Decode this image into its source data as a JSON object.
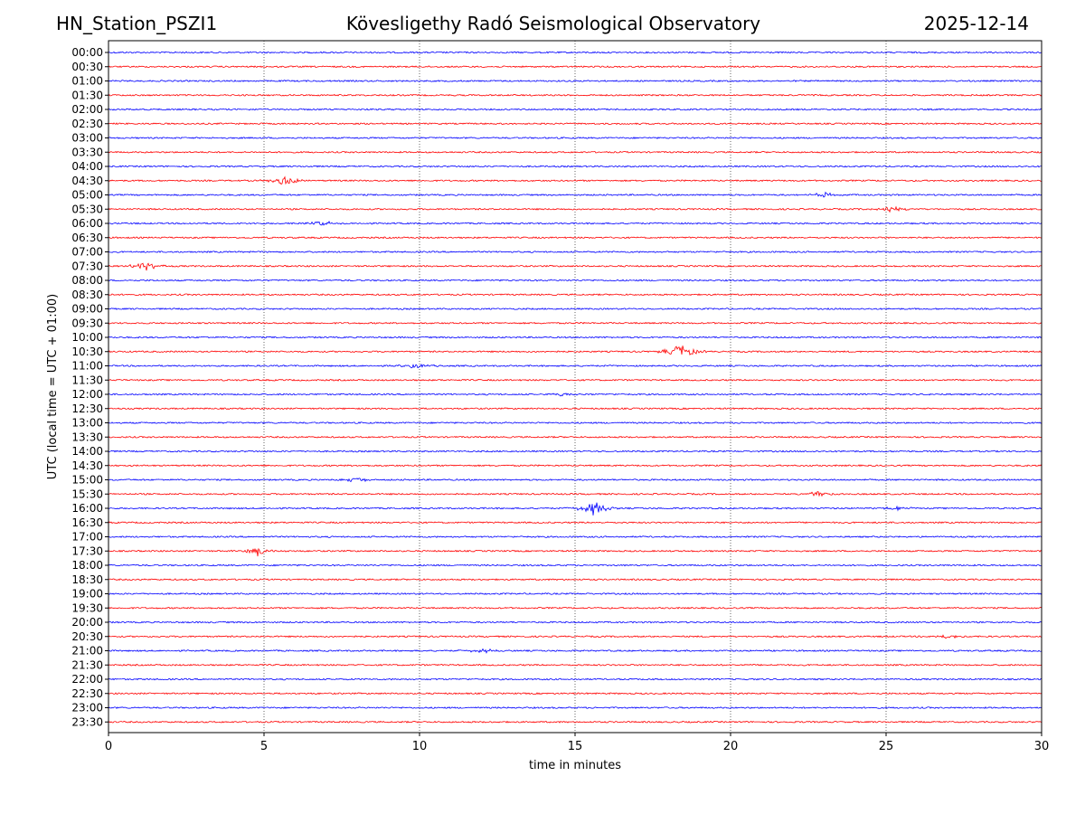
{
  "header": {
    "station": "HN_Station_PSZI1",
    "observatory": "Kövesligethy Radó Seismological Observatory",
    "date": "2025-12-14"
  },
  "chart_data": {
    "type": "line",
    "title": "Kövesligethy Radó Seismological Observatory",
    "xlabel": "time in minutes",
    "ylabel": "UTC (local time = UTC + 01:00)",
    "xlim": [
      0,
      30
    ],
    "xticks": [
      "0",
      "5",
      "10",
      "15",
      "20",
      "25",
      "30"
    ],
    "grid": "vertical dotted at 5-minute intervals",
    "colors": [
      "#0000ff",
      "#ff0000"
    ],
    "rows": [
      "00:00",
      "00:30",
      "01:00",
      "01:30",
      "02:00",
      "02:30",
      "03:00",
      "03:30",
      "04:00",
      "04:30",
      "05:00",
      "05:30",
      "06:00",
      "06:30",
      "07:00",
      "07:30",
      "08:00",
      "08:30",
      "09:00",
      "09:30",
      "10:00",
      "10:30",
      "11:00",
      "11:30",
      "12:00",
      "12:30",
      "13:00",
      "13:30",
      "14:00",
      "14:30",
      "15:00",
      "15:30",
      "16:00",
      "16:30",
      "17:00",
      "17:30",
      "18:00",
      "18:30",
      "19:00",
      "19:30",
      "20:00",
      "20:30",
      "21:00",
      "21:30",
      "22:00",
      "22:30",
      "23:00",
      "23:30"
    ],
    "events": [
      {
        "row": "04:30",
        "minute": 5.7,
        "amplitude": 0.6
      },
      {
        "row": "05:00",
        "minute": 23.0,
        "amplitude": 0.3
      },
      {
        "row": "05:30",
        "minute": 25.1,
        "amplitude": 0.4
      },
      {
        "row": "06:00",
        "minute": 6.9,
        "amplitude": 0.3
      },
      {
        "row": "07:30",
        "minute": 1.2,
        "amplitude": 0.6
      },
      {
        "row": "10:30",
        "minute": 18.4,
        "amplitude": 1.0
      },
      {
        "row": "11:00",
        "minute": 9.9,
        "amplitude": 0.3
      },
      {
        "row": "12:00",
        "minute": 14.7,
        "amplitude": 0.3
      },
      {
        "row": "15:00",
        "minute": 8.0,
        "amplitude": 0.3
      },
      {
        "row": "15:30",
        "minute": 22.8,
        "amplitude": 0.4
      },
      {
        "row": "16:00",
        "minute": 15.6,
        "amplitude": 0.9
      },
      {
        "row": "16:00",
        "minute": 25.4,
        "amplitude": 0.3
      },
      {
        "row": "17:30",
        "minute": 4.8,
        "amplitude": 0.6
      },
      {
        "row": "20:30",
        "minute": 27.0,
        "amplitude": 0.3
      },
      {
        "row": "21:00",
        "minute": 12.0,
        "amplitude": 0.3
      }
    ]
  }
}
